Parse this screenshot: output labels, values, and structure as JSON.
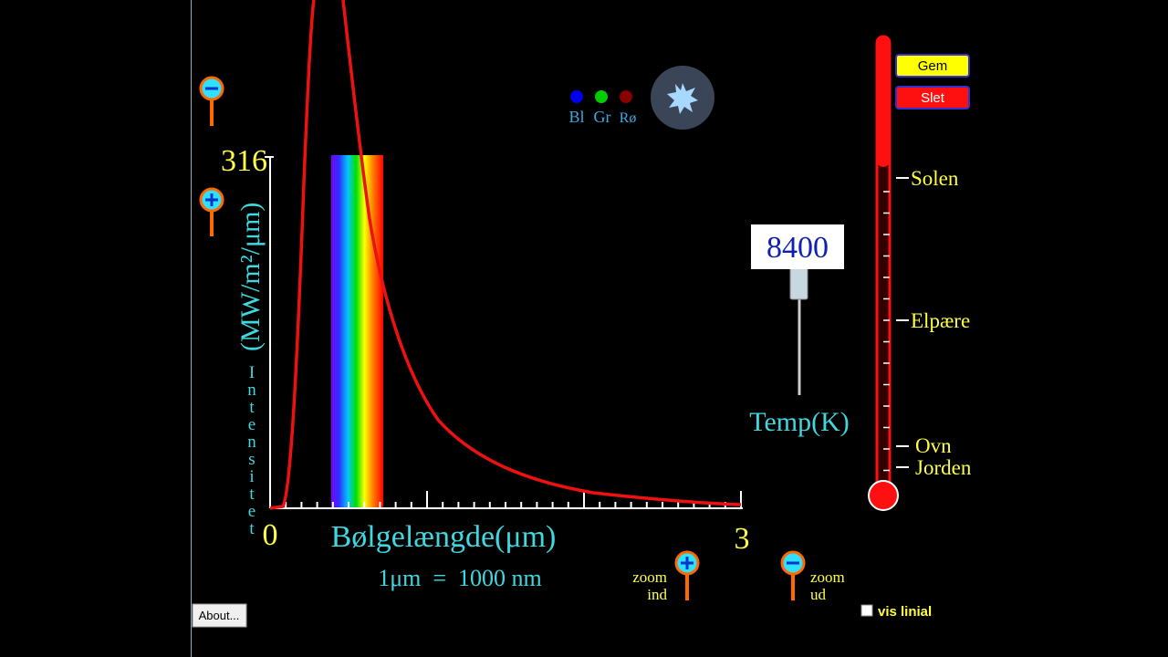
{
  "plot": {
    "y_max": 316,
    "y_axis_label": "(MW/m²/μm)",
    "y_axis_caption": "Intensitet",
    "x_min": 0,
    "x_max": 3,
    "x_axis_label": "Bølgelængde(μm)",
    "x_note": "1μm  =  1000 nm"
  },
  "color_dots": {
    "labels": [
      "Bl",
      "Gr",
      "Rø"
    ]
  },
  "buttons": {
    "save": "Gem",
    "delete": "Slet",
    "about": "About..."
  },
  "temperature": {
    "value": 8400,
    "label": "Temp(K)"
  },
  "thermometer": {
    "marks": [
      "Solen",
      "Elpære",
      "Ovn",
      "Jorden"
    ]
  },
  "zoom": {
    "in": [
      "zoom",
      "ind"
    ],
    "out": [
      "zoom",
      "ud"
    ]
  },
  "ruler": {
    "label": "vis linial"
  }
}
